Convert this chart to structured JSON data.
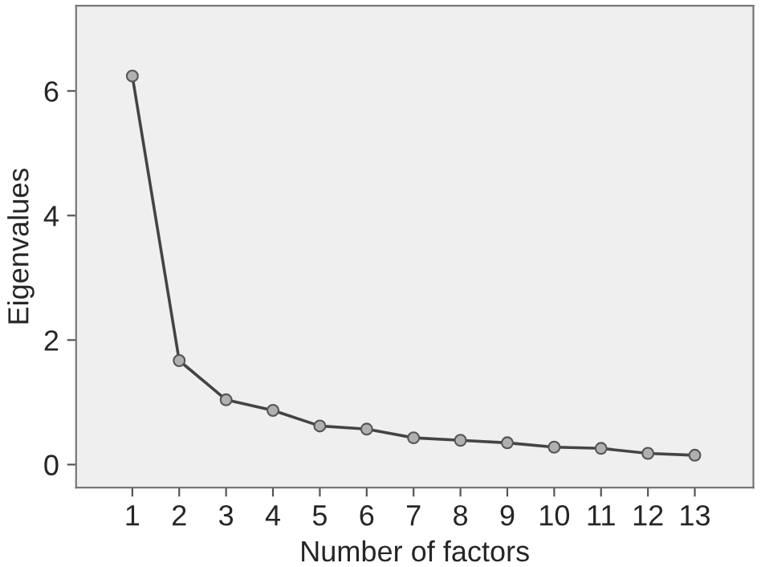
{
  "chart_data": {
    "type": "line",
    "xlabel": "Number of factors",
    "ylabel": "Eigenvalues",
    "x": [
      1,
      2,
      3,
      4,
      5,
      6,
      7,
      8,
      9,
      10,
      11,
      12,
      13
    ],
    "series": [
      {
        "color": "#444444",
        "values": [
          6.24,
          1.67,
          1.04,
          0.87,
          0.62,
          0.57,
          0.43,
          0.39,
          0.35,
          0.28,
          0.26,
          0.18,
          0.15
        ]
      }
    ],
    "xlim": [
      -0.2,
      14.25
    ],
    "xticks": [
      1,
      2,
      3,
      4,
      5,
      6,
      7,
      8,
      9,
      10,
      11,
      12,
      13
    ],
    "ylim": [
      -0.37,
      7.37
    ],
    "yticks": [
      0,
      2,
      4,
      6
    ],
    "grid": false,
    "legend": false,
    "marker": "circle",
    "line_style": "solid"
  }
}
